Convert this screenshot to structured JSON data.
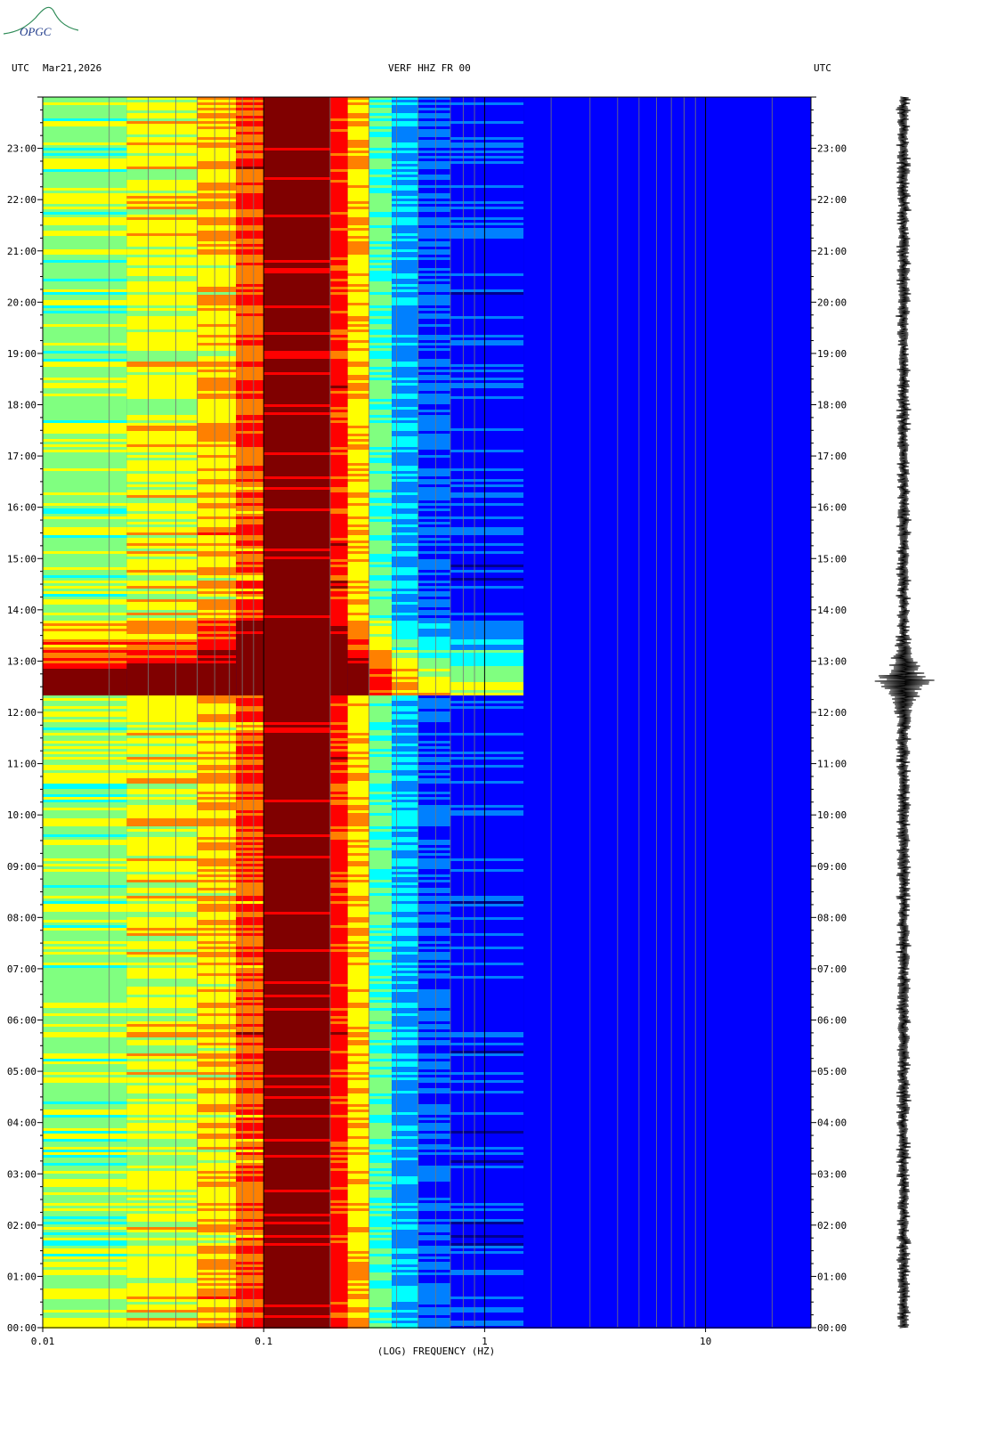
{
  "logo": {
    "text": "OPGC"
  },
  "header": {
    "left_tz": "UTC",
    "date": "Mar21,2026",
    "station": "VERF HHZ FR 00",
    "right_tz": "UTC"
  },
  "chart_data": {
    "type": "heatmap",
    "title": "VERF HHZ FR 00",
    "xlabel": "(LOG) FREQUENCY (HZ)",
    "x_scale": "log",
    "xlim": [
      0.01,
      30
    ],
    "x_ticks": [
      {
        "value": 0.01,
        "label": "0.01"
      },
      {
        "value": 0.1,
        "label": "0.1"
      },
      {
        "value": 1,
        "label": "1"
      },
      {
        "value": 10,
        "label": "10"
      }
    ],
    "y_time_ticks": [
      "00:00",
      "01:00",
      "02:00",
      "03:00",
      "04:00",
      "05:00",
      "06:00",
      "07:00",
      "08:00",
      "09:00",
      "10:00",
      "11:00",
      "12:00",
      "13:00",
      "14:00",
      "15:00",
      "16:00",
      "17:00",
      "18:00",
      "19:00",
      "20:00",
      "21:00",
      "22:00",
      "23:00"
    ],
    "ylim_hours": [
      0,
      24
    ],
    "colormap": [
      "#00008f",
      "#0000ff",
      "#0080ff",
      "#00ffff",
      "#80ff80",
      "#ffff00",
      "#ff8000",
      "#ff0000",
      "#800000"
    ],
    "bands": [
      {
        "f_lo": 0.01,
        "f_hi": 0.024,
        "base_level": 4.2
      },
      {
        "f_lo": 0.024,
        "f_hi": 0.05,
        "base_level": 4.8
      },
      {
        "f_lo": 0.05,
        "f_hi": 0.075,
        "base_level": 5.4
      },
      {
        "f_lo": 0.075,
        "f_hi": 0.1,
        "base_level": 6.4
      },
      {
        "f_lo": 0.1,
        "f_hi": 0.2,
        "base_level": 8.0
      },
      {
        "f_lo": 0.2,
        "f_hi": 0.24,
        "base_level": 6.8
      },
      {
        "f_lo": 0.24,
        "f_hi": 0.3,
        "base_level": 5.4
      },
      {
        "f_lo": 0.3,
        "f_hi": 0.38,
        "base_level": 3.6
      },
      {
        "f_lo": 0.38,
        "f_hi": 0.5,
        "base_level": 2.4
      },
      {
        "f_lo": 0.5,
        "f_hi": 0.7,
        "base_level": 1.6
      },
      {
        "f_lo": 0.7,
        "f_hi": 1.5,
        "base_level": 1.2
      },
      {
        "f_lo": 1.5,
        "f_hi": 30,
        "base_level": 0.8
      }
    ],
    "events": [
      {
        "name": "earthquake",
        "start_hour": 12.35,
        "end_hour": 13.8,
        "peak_hour": 12.5,
        "max_freq_hz": 1.5
      }
    ],
    "waveform": {
      "peak_hour": 12.6,
      "description_level": "strong burst"
    }
  }
}
